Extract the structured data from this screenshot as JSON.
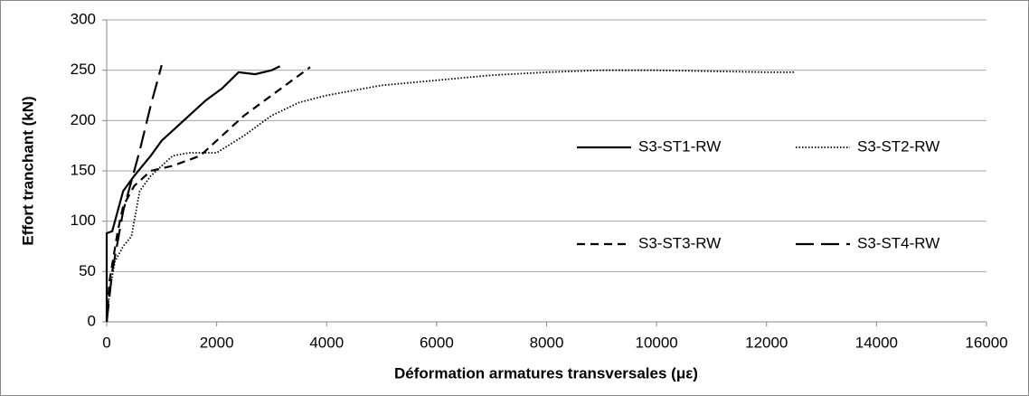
{
  "chart_data": {
    "type": "line",
    "x_label": "Déformation armatures transversales (με)",
    "y_label": "Effort tranchant (kN)",
    "xlim": [
      0,
      16000
    ],
    "xticks": [
      0,
      2000,
      4000,
      6000,
      8000,
      10000,
      12000,
      14000,
      16000
    ],
    "ylim": [
      0,
      300
    ],
    "yticks": [
      0,
      50,
      100,
      150,
      200,
      250,
      300
    ],
    "grid": true,
    "series": [
      {
        "name": "S3-ST1-RW",
        "color": "#000000",
        "dash": "solid",
        "x": [
          0,
          0,
          100,
          150,
          300,
          500,
          800,
          1000,
          1500,
          1800,
          2100,
          2400,
          2700,
          3000,
          3150
        ],
        "values": [
          0,
          88,
          90,
          100,
          130,
          145,
          165,
          180,
          205,
          220,
          232,
          248,
          246,
          250,
          254
        ]
      },
      {
        "name": "S3-ST2-RW",
        "color": "#000000",
        "dash": "dotted",
        "x": [
          0,
          50,
          150,
          300,
          450,
          500,
          600,
          800,
          1200,
          1500,
          2000,
          2500,
          3000,
          3500,
          4000,
          5000,
          6000,
          7000,
          8000,
          9000,
          10000,
          11000,
          12000,
          12500
        ],
        "values": [
          0,
          30,
          60,
          75,
          85,
          100,
          130,
          145,
          165,
          168,
          168,
          185,
          205,
          218,
          225,
          235,
          240,
          245,
          248,
          250,
          250,
          249,
          248,
          248
        ]
      },
      {
        "name": "S3-ST3-RW",
        "color": "#000000",
        "dash": "short-dash",
        "x": [
          0,
          50,
          200,
          300,
          500,
          800,
          1200,
          1700,
          2000,
          2500,
          3000,
          3500,
          3700
        ],
        "values": [
          0,
          40,
          90,
          115,
          135,
          150,
          155,
          165,
          180,
          205,
          225,
          245,
          253
        ]
      },
      {
        "name": "S3-ST4-RW",
        "color": "#000000",
        "dash": "long-dash",
        "x": [
          0,
          100,
          200,
          300,
          450,
          600,
          800,
          1000
        ],
        "values": [
          0,
          50,
          80,
          110,
          140,
          170,
          215,
          255
        ]
      }
    ]
  }
}
